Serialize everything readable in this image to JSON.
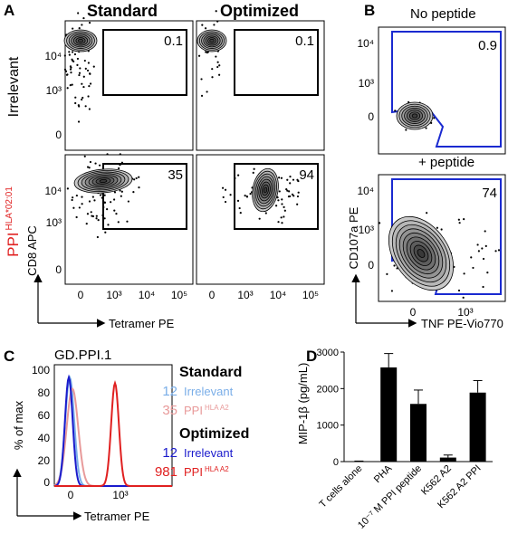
{
  "panels": {
    "A": {
      "letter": "A",
      "columns": [
        "Standard",
        "Optimized"
      ],
      "rows": [
        {
          "label": "Irrelevant",
          "label_color": "#000000"
        },
        {
          "label": "PPI",
          "superscript": "HLA*02:01",
          "label_color": "#e02020"
        }
      ],
      "ylabel": "CD8 APC",
      "xlabel": "Tetramer PE",
      "y_ticks": [
        "10⁴",
        "10³",
        "0"
      ],
      "x_ticks": [
        "0",
        "10³",
        "10⁴",
        "10⁵"
      ],
      "gate_percent": [
        [
          "0.1",
          "0.1"
        ],
        [
          "35",
          "94"
        ]
      ]
    },
    "B": {
      "letter": "B",
      "plots": [
        {
          "title": "No peptide",
          "gate_percent": "0.9"
        },
        {
          "title": "+ peptide",
          "gate_percent": "74"
        }
      ],
      "ylabel": "CD107a PE",
      "xlabel": "TNF PE-Vio770",
      "y_ticks": [
        "10⁴",
        "10³",
        "0"
      ],
      "x_ticks": [
        "0",
        "10³"
      ]
    },
    "C": {
      "letter": "C",
      "title": "GD.PPI.1",
      "ylabel": "% of max",
      "xlabel": "Tetramer PE",
      "y_ticks": [
        "100",
        "80",
        "60",
        "40",
        "20",
        "0"
      ],
      "x_ticks": [
        "0",
        "10³"
      ],
      "legend": {
        "standard_heading": "Standard",
        "optimized_heading": "Optimized",
        "entries": [
          {
            "group": "Standard",
            "value": "12",
            "label": "Irrelevant",
            "color": "#7aaee8"
          },
          {
            "group": "Standard",
            "value": "35",
            "label": "PPI",
            "superscript": "HLA A2",
            "color": "#e89a9a"
          },
          {
            "group": "Optimized",
            "value": "12",
            "label": "Irrelevant",
            "color": "#1a1acc"
          },
          {
            "group": "Optimized",
            "value": "981",
            "label": "PPI",
            "superscript": "HLA A2",
            "color": "#e02020"
          }
        ]
      }
    }
  },
  "chart_data": {
    "type": "bar",
    "panel": "D",
    "letter": "D",
    "ylabel": "MIP-1β (pg/mL)",
    "ylim": [
      0,
      3000
    ],
    "y_ticks": [
      0,
      1000,
      2000,
      3000
    ],
    "categories": [
      "T cells alone",
      "PHA",
      "10⁻⁷ M PPI peptide",
      "K562 A2",
      "K562 A2 PPI"
    ],
    "values": [
      10,
      2580,
      1580,
      110,
      1890
    ],
    "errors": [
      5,
      380,
      380,
      70,
      330
    ],
    "bar_color": "#000000"
  }
}
